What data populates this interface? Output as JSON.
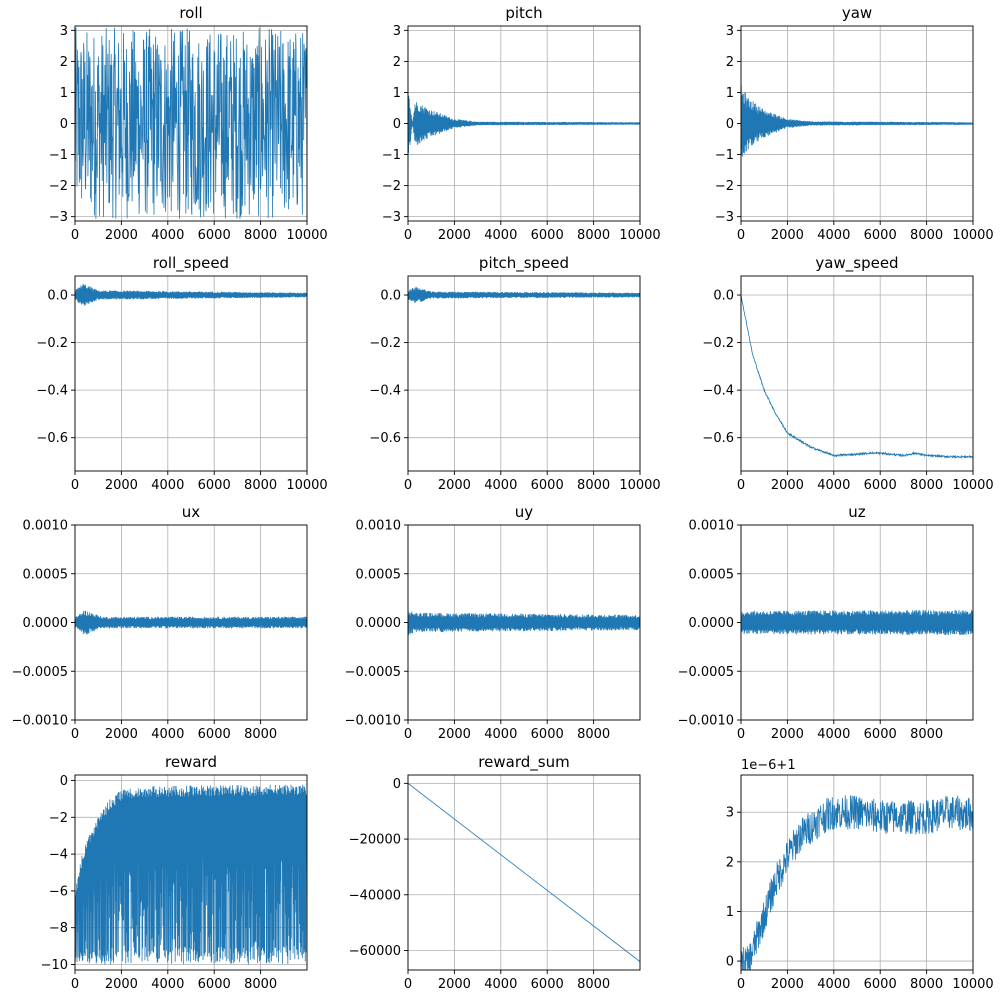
{
  "figure": {
    "line_color": "#1f77b4",
    "grid": true,
    "layout": "4x3 grid of line plots"
  },
  "chart_data": [
    {
      "type": "line",
      "title": "roll",
      "xlabel": "",
      "ylabel": "",
      "grid": true,
      "xlim": [
        0,
        10000
      ],
      "ylim": [
        -3.14,
        3.14
      ],
      "xticks": [
        0,
        2000,
        4000,
        6000,
        8000,
        10000
      ],
      "xtick_labels": [
        "0",
        "2000",
        "4000",
        "6000",
        "8000",
        "10000"
      ],
      "yticks": [
        -3,
        -2,
        -1,
        0,
        1,
        2,
        3
      ],
      "ytick_labels": [
        "−3",
        "−2",
        "−1",
        "0",
        "1",
        "2",
        "3"
      ],
      "series": [
        {
          "pattern": "noise",
          "x_range": [
            0,
            10000
          ],
          "center": 0,
          "amplitude": 3.1,
          "note": "signal fills full range -π..π over all steps"
        }
      ]
    },
    {
      "type": "line",
      "title": "pitch",
      "xlabel": "",
      "ylabel": "",
      "grid": true,
      "xlim": [
        0,
        10000
      ],
      "ylim": [
        -3.14,
        3.14
      ],
      "xticks": [
        0,
        2000,
        4000,
        6000,
        8000,
        10000
      ],
      "xtick_labels": [
        "0",
        "2000",
        "4000",
        "6000",
        "8000",
        "10000"
      ],
      "yticks": [
        -3,
        -2,
        -1,
        0,
        1,
        2,
        3
      ],
      "ytick_labels": [
        "−3",
        "−2",
        "−1",
        "0",
        "1",
        "2",
        "3"
      ],
      "series": [
        {
          "pattern": "damped",
          "x_range": [
            0,
            10000
          ],
          "center": 0,
          "peak": [
            [
              0,
              -1.4
            ],
            [
              300,
              0.75
            ],
            [
              1000,
              0.45
            ],
            [
              2000,
              0.15
            ],
            [
              3000,
              0.06
            ],
            [
              10000,
              0.04
            ]
          ]
        }
      ]
    },
    {
      "type": "line",
      "title": "yaw",
      "xlabel": "",
      "ylabel": "",
      "grid": true,
      "xlim": [
        0,
        10000
      ],
      "ylim": [
        -3.14,
        3.14
      ],
      "xticks": [
        0,
        2000,
        4000,
        6000,
        8000,
        10000
      ],
      "xtick_labels": [
        "0",
        "2000",
        "4000",
        "6000",
        "8000",
        "10000"
      ],
      "yticks": [
        -3,
        -2,
        -1,
        0,
        1,
        2,
        3
      ],
      "ytick_labels": [
        "−3",
        "−2",
        "−1",
        "0",
        "1",
        "2",
        "3"
      ],
      "series": [
        {
          "pattern": "damped",
          "x_range": [
            0,
            10000
          ],
          "center": 0,
          "peak": [
            [
              0,
              1.25
            ],
            [
              300,
              0.85
            ],
            [
              1000,
              0.45
            ],
            [
              2000,
              0.15
            ],
            [
              3000,
              0.07
            ],
            [
              10000,
              0.04
            ]
          ]
        }
      ]
    },
    {
      "type": "line",
      "title": "roll_speed",
      "xlabel": "",
      "ylabel": "",
      "grid": true,
      "xlim": [
        0,
        10000
      ],
      "ylim": [
        -0.74,
        0.08
      ],
      "xticks": [
        0,
        2000,
        4000,
        6000,
        8000,
        10000
      ],
      "xtick_labels": [
        "0",
        "2000",
        "4000",
        "6000",
        "8000",
        "10000"
      ],
      "yticks": [
        -0.6,
        -0.4,
        -0.2,
        0.0
      ],
      "ytick_labels": [
        "−0.6",
        "−0.4",
        "−0.2",
        "0.0"
      ],
      "series": [
        {
          "pattern": "damped",
          "x_range": [
            0,
            10000
          ],
          "center": 0,
          "peak": [
            [
              0,
              0.02
            ],
            [
              350,
              0.05
            ],
            [
              1000,
              0.02
            ],
            [
              10000,
              0.01
            ]
          ]
        }
      ]
    },
    {
      "type": "line",
      "title": "pitch_speed",
      "xlabel": "",
      "ylabel": "",
      "grid": true,
      "xlim": [
        0,
        10000
      ],
      "ylim": [
        -0.74,
        0.08
      ],
      "xticks": [
        0,
        2000,
        4000,
        6000,
        8000,
        10000
      ],
      "xtick_labels": [
        "0",
        "2000",
        "4000",
        "6000",
        "8000",
        "10000"
      ],
      "yticks": [
        -0.6,
        -0.4,
        -0.2,
        0.0
      ],
      "ytick_labels": [
        "−0.6",
        "−0.4",
        "−0.2",
        "0.0"
      ],
      "series": [
        {
          "pattern": "damped",
          "x_range": [
            0,
            10000
          ],
          "center": 0,
          "peak": [
            [
              0,
              0.02
            ],
            [
              350,
              0.035
            ],
            [
              1000,
              0.015
            ],
            [
              10000,
              0.01
            ]
          ]
        }
      ]
    },
    {
      "type": "line",
      "title": "yaw_speed",
      "xlabel": "",
      "ylabel": "",
      "grid": true,
      "xlim": [
        0,
        10000
      ],
      "ylim": [
        -0.74,
        0.08
      ],
      "xticks": [
        0,
        2000,
        4000,
        6000,
        8000,
        10000
      ],
      "xtick_labels": [
        "0",
        "2000",
        "4000",
        "6000",
        "8000",
        "10000"
      ],
      "yticks": [
        -0.6,
        -0.4,
        -0.2,
        0.0
      ],
      "ytick_labels": [
        "−0.6",
        "−0.4",
        "−0.2",
        "0.0"
      ],
      "series": [
        {
          "pattern": "curve",
          "x_range": [
            0,
            10000
          ],
          "jitter": 0.004,
          "points": [
            [
              0,
              0.0
            ],
            [
              200,
              -0.1
            ],
            [
              500,
              -0.25
            ],
            [
              1000,
              -0.4
            ],
            [
              1500,
              -0.5
            ],
            [
              2000,
              -0.58
            ],
            [
              3000,
              -0.64
            ],
            [
              4000,
              -0.675
            ],
            [
              4500,
              -0.672
            ],
            [
              5000,
              -0.67
            ],
            [
              5500,
              -0.665
            ],
            [
              6000,
              -0.665
            ],
            [
              7000,
              -0.675
            ],
            [
              7500,
              -0.665
            ],
            [
              8000,
              -0.675
            ],
            [
              9000,
              -0.68
            ],
            [
              10000,
              -0.68
            ]
          ]
        }
      ]
    },
    {
      "type": "line",
      "title": "ux",
      "xlabel": "",
      "ylabel": "",
      "grid": true,
      "xlim": [
        0,
        9999
      ],
      "ylim": [
        -0.001,
        0.001
      ],
      "xticks": [
        0,
        2000,
        4000,
        6000,
        8000
      ],
      "xtick_labels": [
        "0",
        "2000",
        "4000",
        "6000",
        "8000"
      ],
      "yticks": [
        -0.001,
        -0.0005,
        0.0,
        0.0005,
        0.001
      ],
      "ytick_labels": [
        "−0.0010",
        "−0.0005",
        "0.0000",
        "0.0005",
        "0.0010"
      ],
      "series": [
        {
          "pattern": "damped",
          "x_range": [
            0,
            9999
          ],
          "center": 0,
          "peak": [
            [
              0,
              5e-05
            ],
            [
              400,
              0.00013
            ],
            [
              1200,
              6e-05
            ],
            [
              9999,
              6e-05
            ]
          ]
        }
      ]
    },
    {
      "type": "line",
      "title": "uy",
      "xlabel": "",
      "ylabel": "",
      "grid": true,
      "xlim": [
        0,
        9999
      ],
      "ylim": [
        -0.001,
        0.001
      ],
      "xticks": [
        0,
        2000,
        4000,
        6000,
        8000
      ],
      "xtick_labels": [
        "0",
        "2000",
        "4000",
        "6000",
        "8000"
      ],
      "yticks": [
        -0.001,
        -0.0005,
        0.0,
        0.0005,
        0.001
      ],
      "ytick_labels": [
        "−0.0010",
        "−0.0005",
        "0.0000",
        "0.0005",
        "0.0010"
      ],
      "series": [
        {
          "pattern": "damped",
          "x_range": [
            0,
            9999
          ],
          "center": 0,
          "peak": [
            [
              0,
              0.00013
            ],
            [
              400,
              0.0001
            ],
            [
              9999,
              8e-05
            ]
          ]
        }
      ]
    },
    {
      "type": "line",
      "title": "uz",
      "xlabel": "",
      "ylabel": "",
      "grid": true,
      "xlim": [
        0,
        9999
      ],
      "ylim": [
        -0.001,
        0.001
      ],
      "xticks": [
        0,
        2000,
        4000,
        6000,
        8000
      ],
      "xtick_labels": [
        "0",
        "2000",
        "4000",
        "6000",
        "8000"
      ],
      "yticks": [
        -0.001,
        -0.0005,
        0.0,
        0.0005,
        0.001
      ],
      "ytick_labels": [
        "−0.0010",
        "−0.0005",
        "0.0000",
        "0.0005",
        "0.0010"
      ],
      "series": [
        {
          "pattern": "damped",
          "x_range": [
            0,
            9999
          ],
          "center": 0,
          "peak": [
            [
              0,
              0.00012
            ],
            [
              9999,
              0.00013
            ]
          ]
        }
      ]
    },
    {
      "type": "line",
      "title": "reward",
      "xlabel": "",
      "ylabel": "",
      "grid": true,
      "xlim": [
        0,
        9999
      ],
      "ylim": [
        -10.3,
        0.3
      ],
      "xticks": [
        0,
        2000,
        4000,
        6000,
        8000
      ],
      "xtick_labels": [
        "0",
        "2000",
        "4000",
        "6000",
        "8000"
      ],
      "yticks": [
        -10,
        -8,
        -6,
        -4,
        -2,
        0
      ],
      "ytick_labels": [
        "−10",
        "−8",
        "−6",
        "−4",
        "−2",
        "0"
      ],
      "series": [
        {
          "pattern": "spiky",
          "x_range": [
            0,
            9999
          ],
          "min": -10,
          "note": "upper envelope rises from about −6 at 0 to about −0.3 after 2000",
          "envelope": [
            [
              0,
              -6.0
            ],
            [
              200,
              -4.5
            ],
            [
              500,
              -3.2
            ],
            [
              1000,
              -2.0
            ],
            [
              1500,
              -1.0
            ],
            [
              2000,
              -0.5
            ],
            [
              3000,
              -0.3
            ],
            [
              9999,
              -0.2
            ]
          ]
        }
      ]
    },
    {
      "type": "line",
      "title": "reward_sum",
      "xlabel": "",
      "ylabel": "",
      "grid": true,
      "xlim": [
        0,
        9999
      ],
      "ylim": [
        -67000,
        3000
      ],
      "xticks": [
        0,
        2000,
        4000,
        6000,
        8000
      ],
      "xtick_labels": [
        "0",
        "2000",
        "4000",
        "6000",
        "8000"
      ],
      "yticks": [
        -60000,
        -40000,
        -20000,
        0
      ],
      "ytick_labels": [
        "−60000",
        "−40000",
        "−20000",
        "0"
      ],
      "series": [
        {
          "pattern": "curve",
          "x_range": [
            0,
            9999
          ],
          "points": [
            [
              0,
              0
            ],
            [
              9999,
              -64000
            ]
          ]
        }
      ]
    },
    {
      "type": "line",
      "title": "",
      "offset_label": "1e−6+1",
      "xlabel": "",
      "ylabel": "",
      "grid": true,
      "xlim": [
        0,
        10000
      ],
      "ylim": [
        -0.18,
        3.75
      ],
      "xticks": [
        0,
        2000,
        4000,
        6000,
        8000,
        10000
      ],
      "xtick_labels": [
        "0",
        "2000",
        "4000",
        "6000",
        "8000",
        "10000"
      ],
      "yticks": [
        0,
        1,
        2,
        3
      ],
      "ytick_labels": [
        "0",
        "1",
        "2",
        "3"
      ],
      "series": [
        {
          "pattern": "curve",
          "x_range": [
            0,
            10000
          ],
          "jitter": 0.35,
          "points": [
            [
              0,
              -0.05
            ],
            [
              300,
              -0.05
            ],
            [
              500,
              0.2
            ],
            [
              1000,
              0.9
            ],
            [
              1500,
              1.6
            ],
            [
              2000,
              2.1
            ],
            [
              2500,
              2.5
            ],
            [
              3000,
              2.7
            ],
            [
              3500,
              2.9
            ],
            [
              4000,
              3.0
            ],
            [
              5000,
              3.0
            ],
            [
              6000,
              2.9
            ],
            [
              7000,
              2.9
            ],
            [
              8000,
              2.9
            ],
            [
              9000,
              3.0
            ],
            [
              10000,
              2.95
            ]
          ]
        }
      ]
    }
  ]
}
